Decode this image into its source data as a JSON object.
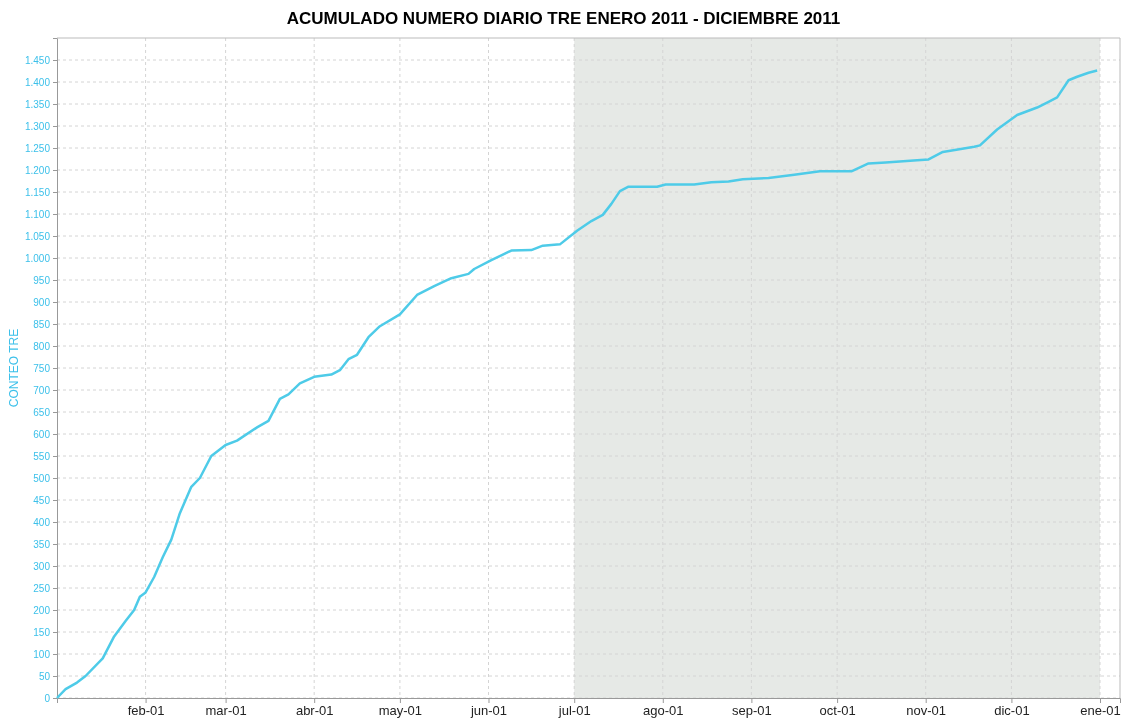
{
  "chart_data": {
    "type": "line",
    "title": "ACUMULADO NUMERO DIARIO TRE ENERO 2011 - DICIEMBRE 2011",
    "ylabel": "CONTEO TRE",
    "x": [
      "2011-01-01",
      "2011-01-04",
      "2011-01-08",
      "2011-01-11",
      "2011-01-17",
      "2011-01-21",
      "2011-01-25",
      "2011-01-28",
      "2011-01-30",
      "2011-02-01",
      "2011-02-04",
      "2011-02-07",
      "2011-02-10",
      "2011-02-13",
      "2011-02-17",
      "2011-02-20",
      "2011-02-24",
      "2011-03-01",
      "2011-03-05",
      "2011-03-12",
      "2011-03-16",
      "2011-03-20",
      "2011-03-23",
      "2011-03-27",
      "2011-04-01",
      "2011-04-07",
      "2011-04-10",
      "2011-04-13",
      "2011-04-16",
      "2011-04-20",
      "2011-04-24",
      "2011-05-01",
      "2011-05-07",
      "2011-05-13",
      "2011-05-19",
      "2011-05-25",
      "2011-05-27",
      "2011-06-02",
      "2011-06-09",
      "2011-06-16",
      "2011-06-20",
      "2011-06-26",
      "2011-07-02",
      "2011-07-07",
      "2011-07-11",
      "2011-07-14",
      "2011-07-17",
      "2011-07-20",
      "2011-07-30",
      "2011-08-02",
      "2011-08-12",
      "2011-08-18",
      "2011-08-24",
      "2011-08-29",
      "2011-09-07",
      "2011-09-16",
      "2011-09-25",
      "2011-10-06",
      "2011-10-12",
      "2011-10-18",
      "2011-10-29",
      "2011-11-02",
      "2011-11-07",
      "2011-11-18",
      "2011-11-20",
      "2011-11-26",
      "2011-12-03",
      "2011-12-10",
      "2011-12-14",
      "2011-12-17",
      "2011-12-21",
      "2011-12-24",
      "2011-12-28",
      "2011-12-31"
    ],
    "series": [
      {
        "color": "#4ecbe8",
        "values": [
          0,
          20,
          35,
          50,
          90,
          140,
          175,
          200,
          230,
          240,
          275,
          320,
          360,
          420,
          480,
          500,
          550,
          575,
          585,
          615,
          630,
          680,
          690,
          715,
          730,
          735,
          745,
          770,
          780,
          820,
          845,
          872,
          916,
          936,
          954,
          964,
          975,
          995,
          1017,
          1018,
          1028,
          1031,
          1062,
          1084,
          1098,
          1123,
          1152,
          1162,
          1162,
          1167,
          1167,
          1172,
          1174,
          1179,
          1182,
          1189,
          1197,
          1197,
          1215,
          1217,
          1222,
          1224,
          1241,
          1253,
          1256,
          1292,
          1325,
          1342,
          1355,
          1365,
          1404,
          1412,
          1421,
          1426
        ]
      }
    ],
    "xlim": [
      "2011-01-01",
      "2012-01-08"
    ],
    "xticks": [
      {
        "value": "2011-02-01",
        "label": "feb-01"
      },
      {
        "value": "2011-03-01",
        "label": "mar-01"
      },
      {
        "value": "2011-04-01",
        "label": "abr-01"
      },
      {
        "value": "2011-05-01",
        "label": "may-01"
      },
      {
        "value": "2011-06-01",
        "label": "jun-01"
      },
      {
        "value": "2011-07-01",
        "label": "jul-01"
      },
      {
        "value": "2011-08-01",
        "label": "ago-01"
      },
      {
        "value": "2011-09-01",
        "label": "sep-01"
      },
      {
        "value": "2011-10-01",
        "label": "oct-01"
      },
      {
        "value": "2011-11-01",
        "label": "nov-01"
      },
      {
        "value": "2011-12-01",
        "label": "dic-01"
      },
      {
        "value": "2012-01-01",
        "label": "ene-01"
      }
    ],
    "ylim": [
      0,
      1500
    ],
    "yticks": [
      0,
      50,
      100,
      150,
      200,
      250,
      300,
      350,
      400,
      450,
      500,
      550,
      600,
      650,
      700,
      750,
      800,
      850,
      900,
      950,
      {
        "value": 1000,
        "label": "1.000"
      },
      {
        "value": 1050,
        "label": "1.050"
      },
      {
        "value": 1100,
        "label": "1.100"
      },
      {
        "value": 1150,
        "label": "1.150"
      },
      {
        "value": 1200,
        "label": "1.200"
      },
      {
        "value": 1250,
        "label": "1.250"
      },
      {
        "value": 1300,
        "label": "1.300"
      },
      {
        "value": 1350,
        "label": "1.350"
      },
      {
        "value": 1400,
        "label": "1.400"
      },
      {
        "value": 1450,
        "label": "1.450"
      }
    ],
    "bands": [
      {
        "axis": "x",
        "from": "2011-07-01",
        "to": "2012-01-01",
        "color": "#e6e9e6"
      }
    ],
    "grid": true,
    "line_style": "solid",
    "marker": "none"
  }
}
